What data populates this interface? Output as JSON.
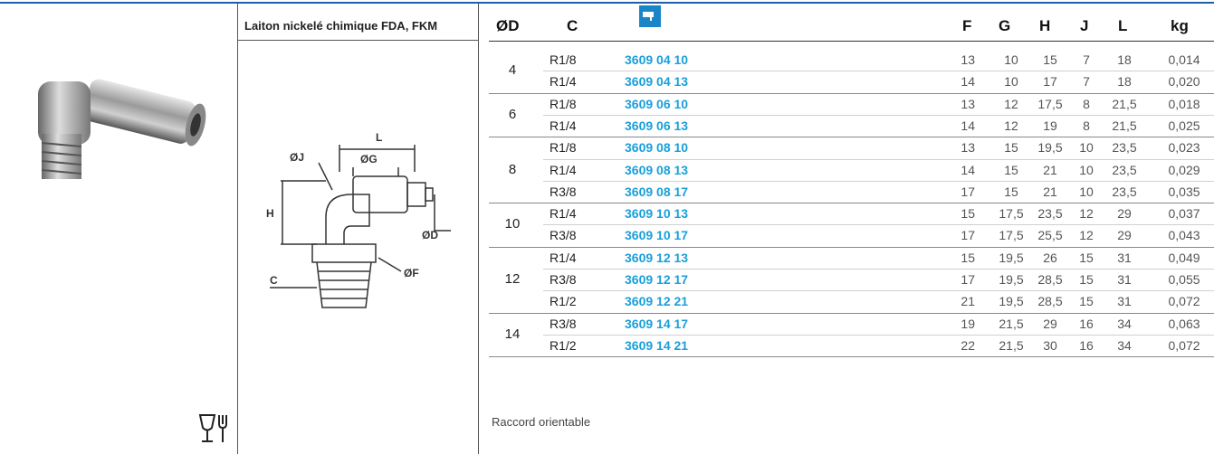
{
  "header": {
    "title": "Laiton nickelé chimique FDA, FKM"
  },
  "diagram": {
    "labels": {
      "l": "L",
      "j": "ØJ",
      "g": "ØG",
      "h": "H",
      "d": "ØD",
      "f": "ØF",
      "c": "C"
    }
  },
  "table": {
    "columns": {
      "d": "ØD",
      "c": "C",
      "f": "F",
      "g": "G",
      "h": "H",
      "j": "J",
      "l": "L",
      "kg": "kg"
    },
    "groups": [
      {
        "d": "4",
        "rows": [
          [
            "R1/8",
            "3609 04 10",
            "13",
            "10",
            "15",
            "7",
            "18",
            "0,014"
          ],
          [
            "R1/4",
            "3609 04 13",
            "14",
            "10",
            "17",
            "7",
            "18",
            "0,020"
          ]
        ]
      },
      {
        "d": "6",
        "rows": [
          [
            "R1/8",
            "3609 06 10",
            "13",
            "12",
            "17,5",
            "8",
            "21,5",
            "0,018"
          ],
          [
            "R1/4",
            "3609 06 13",
            "14",
            "12",
            "19",
            "8",
            "21,5",
            "0,025"
          ]
        ]
      },
      {
        "d": "8",
        "rows": [
          [
            "R1/8",
            "3609 08 10",
            "13",
            "15",
            "19,5",
            "10",
            "23,5",
            "0,023"
          ],
          [
            "R1/4",
            "3609 08 13",
            "14",
            "15",
            "21",
            "10",
            "23,5",
            "0,029"
          ],
          [
            "R3/8",
            "3609 08 17",
            "17",
            "15",
            "21",
            "10",
            "23,5",
            "0,035"
          ]
        ]
      },
      {
        "d": "10",
        "rows": [
          [
            "R1/4",
            "3609 10 13",
            "15",
            "17,5",
            "23,5",
            "12",
            "29",
            "0,037"
          ],
          [
            "R3/8",
            "3609 10 17",
            "17",
            "17,5",
            "25,5",
            "12",
            "29",
            "0,043"
          ]
        ]
      },
      {
        "d": "12",
        "rows": [
          [
            "R1/4",
            "3609 12 13",
            "15",
            "19,5",
            "26",
            "15",
            "31",
            "0,049"
          ],
          [
            "R3/8",
            "3609 12 17",
            "17",
            "19,5",
            "28,5",
            "15",
            "31",
            "0,055"
          ],
          [
            "R1/2",
            "3609 12 21",
            "21",
            "19,5",
            "28,5",
            "15",
            "31",
            "0,072"
          ]
        ]
      },
      {
        "d": "14",
        "rows": [
          [
            "R3/8",
            "3609 14 17",
            "19",
            "21,5",
            "29",
            "16",
            "34",
            "0,063"
          ],
          [
            "R1/2",
            "3609 14 21",
            "22",
            "21,5",
            "30",
            "16",
            "34",
            "0,072"
          ]
        ]
      }
    ]
  },
  "footer": {
    "note": "Raccord orientable"
  }
}
